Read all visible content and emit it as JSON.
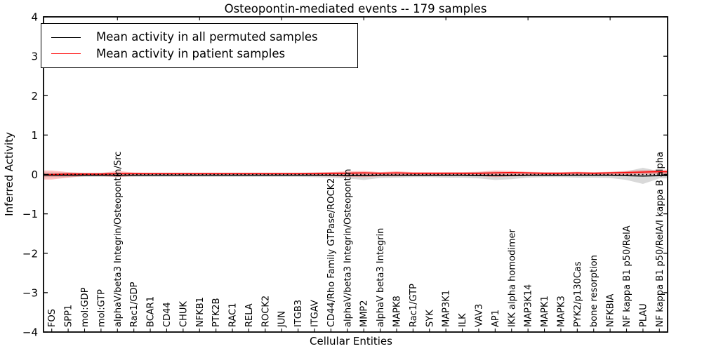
{
  "chart_data": {
    "type": "line",
    "title": "Osteopontin-mediated events -- 179 samples",
    "xlabel": "Cellular Entities",
    "ylabel": "Inferred Activity",
    "ylim": [
      -4,
      4
    ],
    "yticks": [
      4,
      3,
      2,
      1,
      0,
      -1,
      -2,
      -3,
      -4
    ],
    "x_tick_rotation": 90,
    "grid": false,
    "legend_position": "upper left",
    "categories": [
      "FOS",
      "SPP1",
      "mol:GDP",
      "mol:GTP",
      "alphaV/beta3 Integrin/Osteopontin/Src",
      "Rac1/GDP",
      "BCAR1",
      "CD44",
      "CHUK",
      "NFKB1",
      "PTK2B",
      "RAC1",
      "RELA",
      "ROCK2",
      "JUN",
      "ITGB3",
      "ITGAV",
      "CD44/Rho Family GTPase/ROCK2",
      "alphaV/beta3 Integrin/Osteopontin",
      "MMP2",
      "alphaV beta3 Integrin",
      "MAPK8",
      "Rac1/GTP",
      "SYK",
      "MAP3K1",
      "ILK",
      "VAV3",
      "AP1",
      "IKK alpha homodimer",
      "MAP3K14",
      "MAPK1",
      "MAPK3",
      "PYK2/p130Cas",
      "bone resorption",
      "NFKBIA",
      "NF kappa B1 p50/RelA",
      "PLAU",
      "NF kappa B1 p50/RelA/I kappa B alpha"
    ],
    "series": [
      {
        "name": "Mean activity in all permuted samples",
        "color": "#000000",
        "style": "solid",
        "values": [
          -0.02,
          -0.02,
          -0.02,
          -0.02,
          -0.02,
          -0.02,
          -0.02,
          -0.02,
          -0.02,
          -0.02,
          -0.02,
          -0.02,
          -0.02,
          -0.02,
          -0.02,
          -0.02,
          -0.02,
          -0.02,
          -0.03,
          -0.03,
          -0.02,
          -0.02,
          -0.02,
          -0.02,
          -0.02,
          -0.02,
          -0.03,
          -0.03,
          -0.03,
          -0.02,
          -0.02,
          -0.02,
          -0.02,
          -0.02,
          -0.02,
          -0.03,
          -0.04,
          -0.03
        ]
      },
      {
        "name": "Mean activity in patient samples",
        "color": "#ff0000",
        "style": "solid",
        "values": [
          0.0,
          0.01,
          0.01,
          0.01,
          0.02,
          0.02,
          0.02,
          0.02,
          0.02,
          0.02,
          0.02,
          0.02,
          0.02,
          0.02,
          0.02,
          0.02,
          0.02,
          0.03,
          0.03,
          0.04,
          0.03,
          0.04,
          0.03,
          0.03,
          0.03,
          0.03,
          0.03,
          0.04,
          0.05,
          0.04,
          0.03,
          0.03,
          0.04,
          0.03,
          0.04,
          0.05,
          0.06,
          0.07
        ]
      }
    ],
    "bands": [
      {
        "name": "permuted-range",
        "color": "#aaaaaa",
        "opacity": 0.45,
        "upper": [
          0.05,
          0.05,
          0.04,
          0.04,
          0.04,
          0.04,
          0.04,
          0.04,
          0.04,
          0.04,
          0.04,
          0.04,
          0.04,
          0.04,
          0.04,
          0.04,
          0.05,
          0.05,
          0.06,
          0.06,
          0.05,
          0.05,
          0.04,
          0.04,
          0.05,
          0.05,
          0.06,
          0.07,
          0.06,
          0.05,
          0.05,
          0.05,
          0.05,
          0.05,
          0.06,
          0.08,
          0.17,
          0.08
        ],
        "lower": [
          -0.07,
          -0.07,
          -0.06,
          -0.06,
          -0.06,
          -0.06,
          -0.06,
          -0.06,
          -0.06,
          -0.06,
          -0.06,
          -0.06,
          -0.06,
          -0.06,
          -0.06,
          -0.06,
          -0.07,
          -0.08,
          -0.1,
          -0.14,
          -0.09,
          -0.08,
          -0.07,
          -0.07,
          -0.08,
          -0.08,
          -0.1,
          -0.14,
          -0.12,
          -0.08,
          -0.07,
          -0.07,
          -0.08,
          -0.08,
          -0.09,
          -0.14,
          -0.24,
          -0.1
        ]
      },
      {
        "name": "patient-range",
        "color": "#ff0000",
        "opacity": 0.24,
        "upper": [
          0.1,
          0.06,
          0.04,
          0.04,
          0.09,
          0.05,
          0.04,
          0.04,
          0.04,
          0.04,
          0.04,
          0.04,
          0.04,
          0.04,
          0.04,
          0.04,
          0.05,
          0.06,
          0.08,
          0.09,
          0.06,
          0.08,
          0.06,
          0.06,
          0.06,
          0.06,
          0.07,
          0.1,
          0.09,
          0.07,
          0.06,
          0.06,
          0.07,
          0.06,
          0.07,
          0.09,
          0.11,
          0.12
        ],
        "lower": [
          -0.13,
          -0.08,
          -0.04,
          -0.04,
          -0.07,
          -0.04,
          -0.03,
          -0.03,
          -0.03,
          -0.03,
          -0.03,
          -0.03,
          -0.03,
          -0.03,
          -0.03,
          -0.03,
          -0.04,
          -0.05,
          -0.06,
          -0.07,
          -0.05,
          -0.05,
          -0.04,
          -0.04,
          -0.04,
          -0.04,
          -0.04,
          -0.07,
          -0.05,
          -0.04,
          -0.03,
          -0.03,
          -0.03,
          -0.03,
          -0.02,
          -0.01,
          0.0,
          0.01
        ]
      }
    ],
    "zero_line": {
      "y": 0,
      "color": "#000000",
      "style": "dotted"
    }
  }
}
